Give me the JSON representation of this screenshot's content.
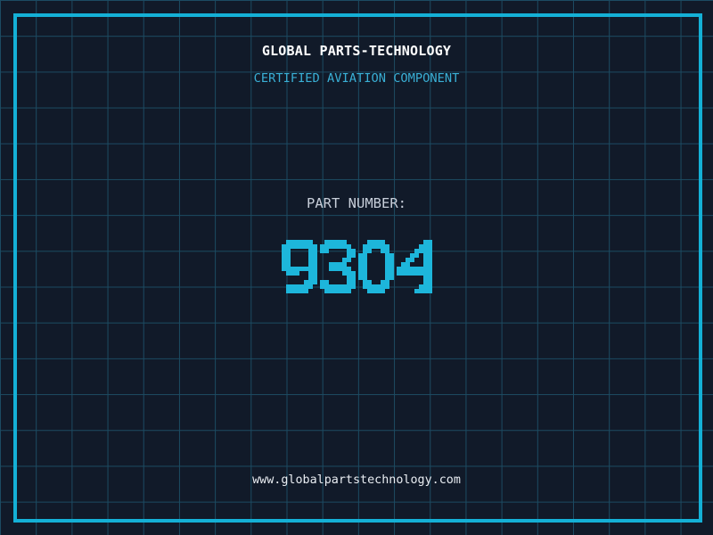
{
  "colors": {
    "background": "#111a29",
    "grid_line": "#1c4b62",
    "frame": "#14b0d6",
    "digit": "#1db6db",
    "title": "#ffffff",
    "subtitle": "#39afd5",
    "label": "#c8cfda",
    "url": "#e9edf2"
  },
  "header": {
    "company": "GLOBAL PARTS-TECHNOLOGY",
    "subtitle": "CERTIFIED AVIATION COMPONENT"
  },
  "part": {
    "label": "PART NUMBER:",
    "number": "9304"
  },
  "footer": {
    "website": "www.globalpartstechnology.com"
  }
}
